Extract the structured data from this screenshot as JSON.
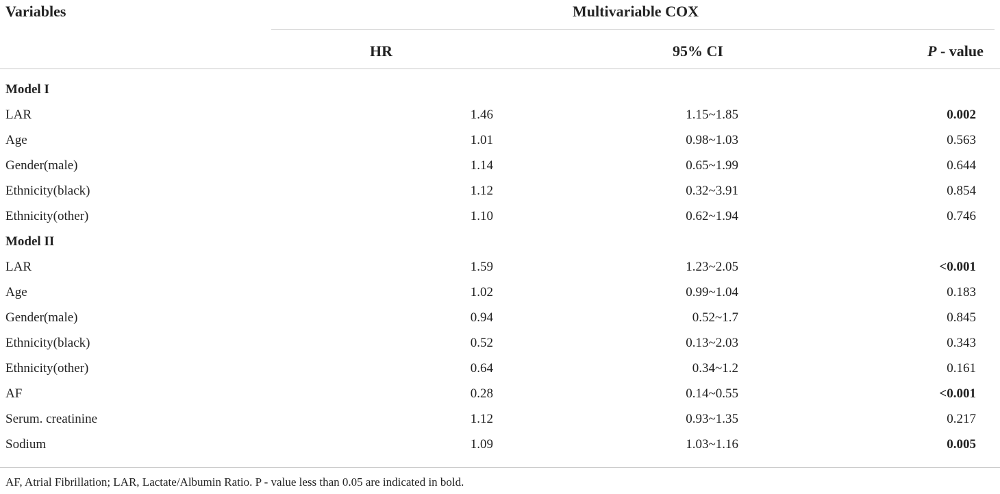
{
  "table": {
    "header": {
      "variables": "Variables",
      "group": "Multivariable COX",
      "hr": "HR",
      "ci": "95% CI",
      "p_italic": "P",
      "p_rest": " - value"
    },
    "rows": [
      {
        "section": "Model I"
      },
      {
        "variable": "LAR",
        "hr": "1.46",
        "ci": "1.15~1.85",
        "p": "0.002",
        "p_bold": true
      },
      {
        "variable": "Age",
        "hr": "1.01",
        "ci": "0.98~1.03",
        "p": "0.563",
        "p_bold": false
      },
      {
        "variable": "Gender(male)",
        "hr": "1.14",
        "ci": "0.65~1.99",
        "p": "0.644",
        "p_bold": false
      },
      {
        "variable": "Ethnicity(black)",
        "hr": "1.12",
        "ci": "0.32~3.91",
        "p": "0.854",
        "p_bold": false
      },
      {
        "variable": "Ethnicity(other)",
        "hr": "1.10",
        "ci": "0.62~1.94",
        "p": "0.746",
        "p_bold": false
      },
      {
        "section": "Model II"
      },
      {
        "variable": "LAR",
        "hr": "1.59",
        "ci": "1.23~2.05",
        "p": "<0.001",
        "p_bold": true
      },
      {
        "variable": "Age",
        "hr": "1.02",
        "ci": "0.99~1.04",
        "p": "0.183",
        "p_bold": false
      },
      {
        "variable": "Gender(male)",
        "hr": "0.94",
        "ci": "0.52~1.7",
        "p": "0.845",
        "p_bold": false
      },
      {
        "variable": "Ethnicity(black)",
        "hr": "0.52",
        "ci": "0.13~2.03",
        "p": "0.343",
        "p_bold": false
      },
      {
        "variable": "Ethnicity(other)",
        "hr": "0.64",
        "ci": "0.34~1.2",
        "p": "0.161",
        "p_bold": false
      },
      {
        "variable": "AF",
        "hr": "0.28",
        "ci": "0.14~0.55",
        "p": "<0.001",
        "p_bold": true
      },
      {
        "variable": "Serum. creatinine",
        "hr": "1.12",
        "ci": "0.93~1.35",
        "p": "0.217",
        "p_bold": false
      },
      {
        "variable": "Sodium",
        "hr": "1.09",
        "ci": "1.03~1.16",
        "p": "0.005",
        "p_bold": true
      }
    ],
    "footnote": "AF, Atrial Fibrillation; LAR, Lactate/Albumin Ratio. P - value less than 0.05 are indicated in bold."
  }
}
